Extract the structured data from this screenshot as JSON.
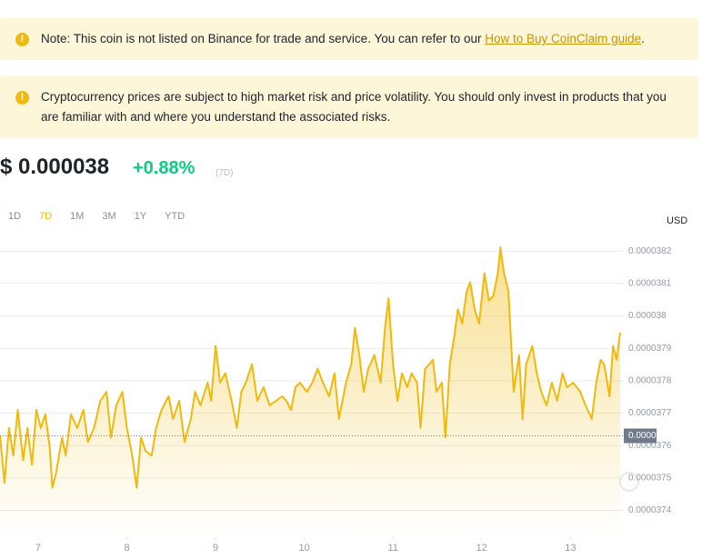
{
  "notices": [
    {
      "text": "Note: This coin is not listed on Binance for trade and service. You can refer to our ",
      "link": "How to Buy CoinClaim guide",
      "end": "."
    },
    {
      "text": "Cryptocurrency prices are subject to high market risk and price volatility. You should only invest in products that you are familiar with and where you understand the associated risks."
    }
  ],
  "price": {
    "value": "$ 0.000038",
    "change": "+0.88%",
    "period": "(7D)"
  },
  "range_tabs": [
    "1D",
    "7D",
    "1M",
    "3M",
    "1Y",
    "YTD"
  ],
  "active_tab": 1,
  "chart_data": {
    "type": "line",
    "y_axis_label": "USD",
    "color": "#f0b90b",
    "grid": true,
    "x": [
      6.57,
      6.62,
      6.67,
      6.72,
      6.77,
      6.83,
      6.88,
      6.93,
      6.98,
      7.03,
      7.08,
      7.13,
      7.16,
      7.2,
      7.27,
      7.31,
      7.37,
      7.44,
      7.51,
      7.56,
      7.63,
      7.7,
      7.77,
      7.82,
      7.88,
      7.95,
      8.0,
      8.06,
      8.11,
      8.16,
      8.21,
      8.28,
      8.33,
      8.39,
      8.47,
      8.52,
      8.59,
      8.65,
      8.72,
      8.77,
      8.83,
      8.91,
      8.95,
      9.0,
      9.05,
      9.11,
      9.18,
      9.24,
      9.29,
      9.34,
      9.41,
      9.47,
      9.54,
      9.61,
      9.68,
      9.75,
      9.8,
      9.85,
      9.9,
      9.95,
      10.03,
      10.09,
      10.15,
      10.21,
      10.28,
      10.34,
      10.39,
      10.47,
      10.53,
      10.57,
      10.62,
      10.67,
      10.72,
      10.79,
      10.86,
      10.91,
      10.95,
      11.0,
      11.05,
      11.1,
      11.16,
      11.21,
      11.27,
      11.31,
      11.36,
      11.41,
      11.45,
      11.49,
      11.55,
      11.59,
      11.64,
      11.69,
      11.73,
      11.78,
      11.83,
      11.87,
      11.92,
      11.97,
      12.03,
      12.08,
      12.13,
      12.18,
      12.21,
      12.25,
      12.3,
      12.36,
      12.42,
      12.46,
      12.5,
      12.57,
      12.62,
      12.67,
      12.73,
      12.79,
      12.85,
      12.91,
      12.96,
      13.03,
      13.11,
      13.17,
      13.24,
      13.29,
      13.34,
      13.38,
      13.44,
      13.48,
      13.52,
      13.56
    ],
    "values": [
      3.7631e-05,
      3.7485e-05,
      3.7654e-05,
      3.7569e-05,
      3.771e-05,
      3.7555e-05,
      3.7654e-05,
      3.7541e-05,
      3.771e-05,
      3.7654e-05,
      3.7696e-05,
      3.7597e-05,
      3.747e-05,
      3.7513e-05,
      3.7625e-05,
      3.7569e-05,
      3.7696e-05,
      3.7654e-05,
      3.771e-05,
      3.7611e-05,
      3.7654e-05,
      3.7738e-05,
      3.7766e-05,
      3.7625e-05,
      3.7724e-05,
      3.7766e-05,
      3.7654e-05,
      3.7569e-05,
      3.747e-05,
      3.7625e-05,
      3.7583e-05,
      3.7569e-05,
      3.7654e-05,
      3.771e-05,
      3.7752e-05,
      3.7682e-05,
      3.7738e-05,
      3.7611e-05,
      3.7682e-05,
      3.7766e-05,
      3.7724e-05,
      3.7794e-05,
      3.7738e-05,
      3.7907e-05,
      3.7794e-05,
      3.7823e-05,
      3.7738e-05,
      3.7654e-05,
      3.7766e-05,
      3.7794e-05,
      3.7851e-05,
      3.7738e-05,
      3.778e-05,
      3.7724e-05,
      3.7738e-05,
      3.7752e-05,
      3.7738e-05,
      3.771e-05,
      3.778e-05,
      3.7794e-05,
      3.7766e-05,
      3.7794e-05,
      3.7837e-05,
      3.7794e-05,
      3.7752e-05,
      3.7823e-05,
      3.7682e-05,
      3.7794e-05,
      3.7851e-05,
      3.7963e-05,
      3.7879e-05,
      3.7766e-05,
      3.7837e-05,
      3.7879e-05,
      3.7794e-05,
      3.7963e-05,
      3.8054e-05,
      3.7851e-05,
      3.7738e-05,
      3.7823e-05,
      3.778e-05,
      3.7823e-05,
      3.7794e-05,
      3.7654e-05,
      3.7837e-05,
      3.7851e-05,
      3.7865e-05,
      3.7766e-05,
      3.7794e-05,
      3.7625e-05,
      3.7851e-05,
      3.7935e-05,
      3.802e-05,
      3.7977e-05,
      3.8076e-05,
      3.8104e-05,
      3.802e-05,
      3.7977e-05,
      3.8132e-05,
      3.8048e-05,
      3.8062e-05,
      3.8132e-05,
      3.8211e-05,
      3.8132e-05,
      3.8076e-05,
      3.7766e-05,
      3.7879e-05,
      3.7682e-05,
      3.7851e-05,
      3.7907e-05,
      3.7823e-05,
      3.7766e-05,
      3.7724e-05,
      3.7794e-05,
      3.7738e-05,
      3.7823e-05,
      3.778e-05,
      3.7794e-05,
      3.7766e-05,
      3.7724e-05,
      3.7682e-05,
      3.7794e-05,
      3.7865e-05,
      3.7851e-05,
      3.7752e-05,
      3.7907e-05,
      3.7865e-05,
      3.7949e-05
    ],
    "xlim": [
      6.57,
      13.56
    ],
    "xticks": [
      7,
      8,
      9,
      10,
      11,
      12,
      13
    ],
    "ylim": [
      3.732e-05,
      3.824e-05
    ],
    "yticks": [
      3.74e-05,
      3.75e-05,
      3.76e-05,
      3.77e-05,
      3.78e-05,
      3.79e-05,
      3.8e-05,
      3.81e-05,
      3.82e-05
    ],
    "current_price": {
      "value": 3.763e-05,
      "label": "0.0000376"
    }
  }
}
